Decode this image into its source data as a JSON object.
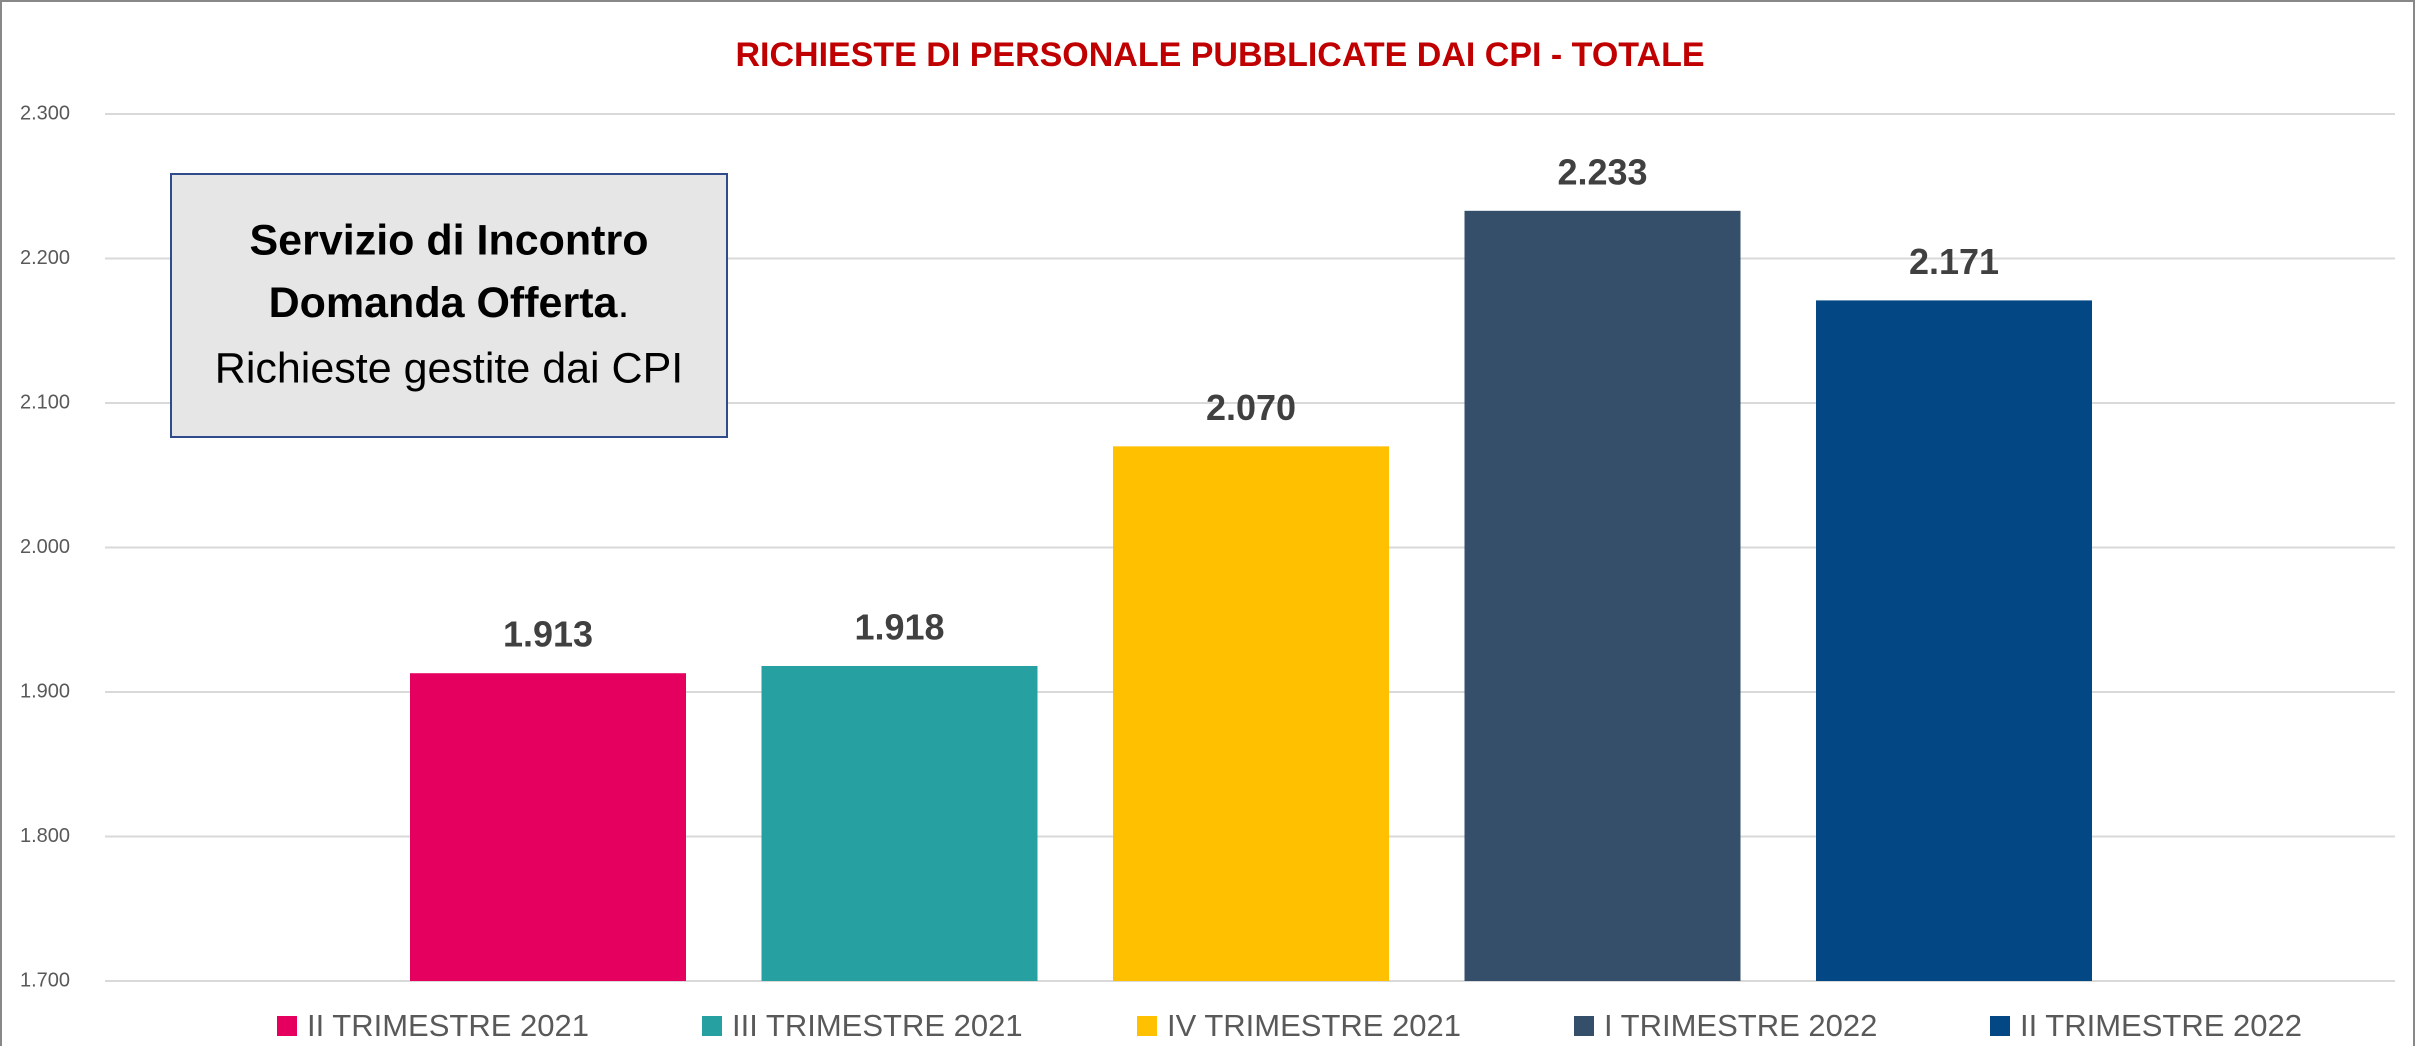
{
  "chart_data": {
    "type": "bar",
    "title": "RICHIESTE DI PERSONALE PUBBLICATE DAI CPI - TOTALE",
    "annotation": [
      "Servizio di Incontro",
      "Domanda Offerta",
      ".",
      "Richieste gestite dai CPI"
    ],
    "series": [
      {
        "name": "II TRIMESTRE 2021",
        "color": "#e5005f",
        "values": [
          1913
        ],
        "value_labels": [
          "1.913"
        ]
      },
      {
        "name": "III TRIMESTRE 2021",
        "color": "#26a0a0",
        "values": [
          1918
        ],
        "value_labels": [
          "1.918"
        ]
      },
      {
        "name": "IV TRIMESTRE 2021",
        "color": "#ffc000",
        "values": [
          2070
        ],
        "value_labels": [
          "2.070"
        ]
      },
      {
        "name": "I TRIMESTRE 2022",
        "color": "#354f6b",
        "values": [
          2233
        ],
        "value_labels": [
          "2.233"
        ]
      },
      {
        "name": "II TRIMESTRE 2022",
        "color": "#034785",
        "values": [
          2171
        ],
        "value_labels": [
          "2.171"
        ]
      }
    ],
    "ylim": [
      1700,
      2300
    ],
    "yticks": [
      {
        "value": 1700,
        "label": "1.700"
      },
      {
        "value": 1800,
        "label": "1.800"
      },
      {
        "value": 1900,
        "label": "1.900"
      },
      {
        "value": 2000,
        "label": "2.000"
      },
      {
        "value": 2100,
        "label": "2.100"
      },
      {
        "value": 2200,
        "label": "2.200"
      },
      {
        "value": 2300,
        "label": "2.300"
      }
    ],
    "grid": true,
    "legend": "bottom"
  }
}
